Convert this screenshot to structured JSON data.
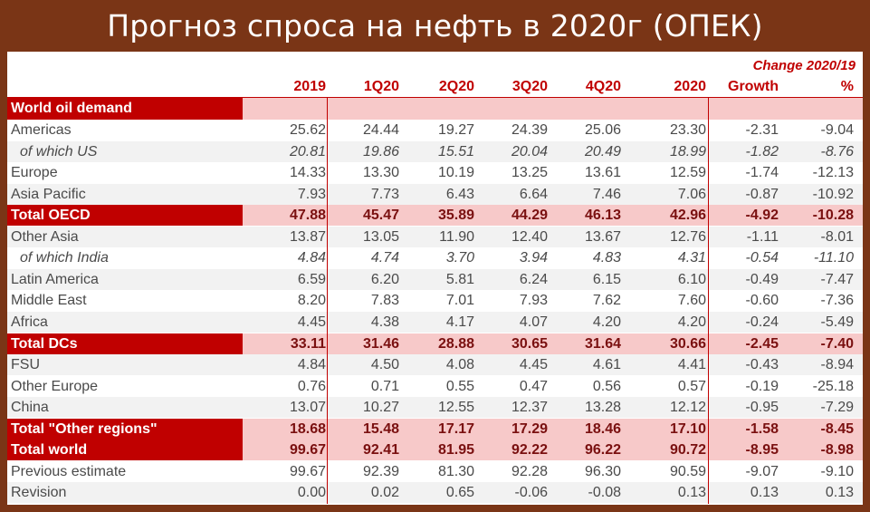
{
  "title": "Прогноз спроса на нефть в 2020г (ОПЕК)",
  "header": {
    "change_label": "Change 2020/19",
    "columns": [
      "2019",
      "1Q20",
      "2Q20",
      "3Q20",
      "4Q20",
      "2020",
      "Growth",
      "%"
    ]
  },
  "section_label": "World oil demand",
  "chart_data": {
    "type": "table",
    "title": "Прогноз спроса на нефть в 2020г (ОПЕК)",
    "columns": [
      "2019",
      "1Q20",
      "2Q20",
      "3Q20",
      "4Q20",
      "2020",
      "Growth",
      "%"
    ],
    "rows": [
      {
        "label": "Americas",
        "kind": "normal",
        "values": [
          "25.62",
          "24.44",
          "19.27",
          "24.39",
          "25.06",
          "23.30",
          "-2.31",
          "-9.04"
        ]
      },
      {
        "label": "of which US",
        "kind": "sub",
        "values": [
          "20.81",
          "19.86",
          "15.51",
          "20.04",
          "20.49",
          "18.99",
          "-1.82",
          "-8.76"
        ]
      },
      {
        "label": "Europe",
        "kind": "normal",
        "values": [
          "14.33",
          "13.30",
          "10.19",
          "13.25",
          "13.61",
          "12.59",
          "-1.74",
          "-12.13"
        ]
      },
      {
        "label": "Asia Pacific",
        "kind": "normal",
        "values": [
          "7.93",
          "7.73",
          "6.43",
          "6.64",
          "7.46",
          "7.06",
          "-0.87",
          "-10.92"
        ]
      },
      {
        "label": "Total OECD",
        "kind": "total",
        "values": [
          "47.88",
          "45.47",
          "35.89",
          "44.29",
          "46.13",
          "42.96",
          "-4.92",
          "-10.28"
        ]
      },
      {
        "label": "Other Asia",
        "kind": "normal",
        "values": [
          "13.87",
          "13.05",
          "11.90",
          "12.40",
          "13.67",
          "12.76",
          "-1.11",
          "-8.01"
        ]
      },
      {
        "label": "of which India",
        "kind": "sub",
        "values": [
          "4.84",
          "4.74",
          "3.70",
          "3.94",
          "4.83",
          "4.31",
          "-0.54",
          "-11.10"
        ]
      },
      {
        "label": "Latin America",
        "kind": "normal",
        "values": [
          "6.59",
          "6.20",
          "5.81",
          "6.24",
          "6.15",
          "6.10",
          "-0.49",
          "-7.47"
        ]
      },
      {
        "label": "Middle East",
        "kind": "normal",
        "values": [
          "8.20",
          "7.83",
          "7.01",
          "7.93",
          "7.62",
          "7.60",
          "-0.60",
          "-7.36"
        ]
      },
      {
        "label": "Africa",
        "kind": "normal",
        "values": [
          "4.45",
          "4.38",
          "4.17",
          "4.07",
          "4.20",
          "4.20",
          "-0.24",
          "-5.49"
        ]
      },
      {
        "label": "Total DCs",
        "kind": "total",
        "values": [
          "33.11",
          "31.46",
          "28.88",
          "30.65",
          "31.64",
          "30.66",
          "-2.45",
          "-7.40"
        ]
      },
      {
        "label": "FSU",
        "kind": "normal",
        "values": [
          "4.84",
          "4.50",
          "4.08",
          "4.45",
          "4.61",
          "4.41",
          "-0.43",
          "-8.94"
        ]
      },
      {
        "label": "Other Europe",
        "kind": "normal",
        "values": [
          "0.76",
          "0.71",
          "0.55",
          "0.47",
          "0.56",
          "0.57",
          "-0.19",
          "-25.18"
        ]
      },
      {
        "label": "China",
        "kind": "normal",
        "values": [
          "13.07",
          "10.27",
          "12.55",
          "12.37",
          "13.28",
          "12.12",
          "-0.95",
          "-7.29"
        ]
      },
      {
        "label": "Total \"Other regions\"",
        "kind": "total",
        "values": [
          "18.68",
          "15.48",
          "17.17",
          "17.29",
          "18.46",
          "17.10",
          "-1.58",
          "-8.45"
        ]
      },
      {
        "label": "Total world",
        "kind": "total",
        "values": [
          "99.67",
          "92.41",
          "81.95",
          "92.22",
          "96.22",
          "90.72",
          "-8.95",
          "-8.98"
        ]
      },
      {
        "label": "Previous estimate",
        "kind": "normal",
        "values": [
          "99.67",
          "92.39",
          "81.30",
          "92.28",
          "96.30",
          "90.59",
          "-9.07",
          "-9.10"
        ]
      },
      {
        "label": "Revision",
        "kind": "normal",
        "values": [
          "0.00",
          "0.02",
          "0.65",
          "-0.06",
          "-0.08",
          "0.13",
          "0.13",
          "0.13"
        ]
      }
    ]
  },
  "colors": {
    "title_background": "#7a3516",
    "accent_red": "#c00000",
    "total_row_fill": "#f7c9c9",
    "text": "#4a4a4a"
  }
}
